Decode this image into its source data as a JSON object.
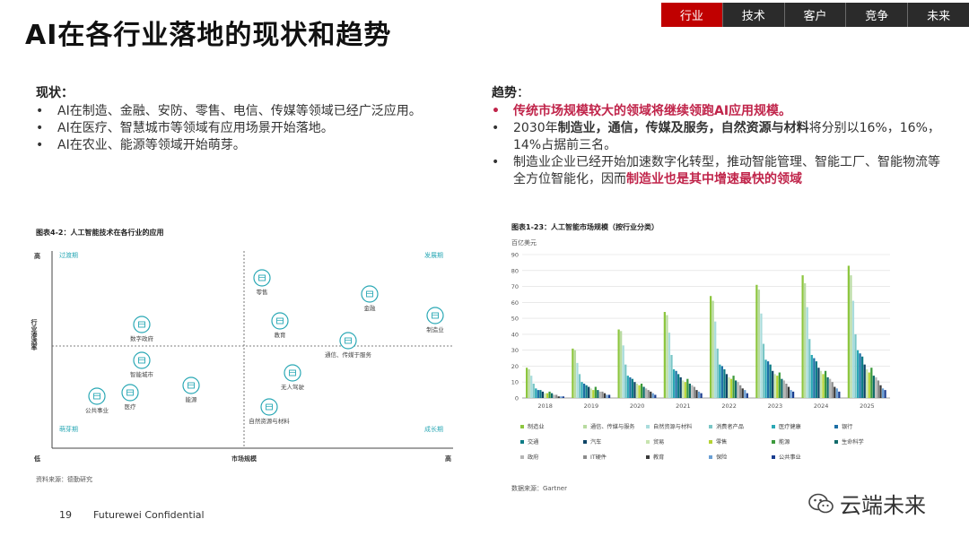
{
  "title": "AI在各行业落地的现状和趋势",
  "tabs": [
    "行业",
    "技术",
    "客户",
    "竞争",
    "未来"
  ],
  "active_tab": 0,
  "current": {
    "heading": "现状：",
    "bullets": [
      "AI在制造、金融、安防、零售、电信、传媒等领域已经广泛应用。",
      "AI在医疗、智慧城市等领域有应用场景开始落地。",
      "AI在农业、能源等领域开始萌芽。"
    ]
  },
  "trend": {
    "heading_bold": "趋势",
    "heading_rest": "：",
    "b1": "传统市场规模较大的领域将继续领跑AI应用规模。",
    "b2_a": "2030年",
    "b2_b": "制造业，通信，传媒及服务，自然资源与材料",
    "b2_c": "将分别以16%，16%，14%占据前三名。",
    "b3_a": "制造业企业已经开始加速数字化转型，推动智能管理、智能工厂、智能物流等全方位智能化，因而",
    "b3_b": "制造业也是其中增速最快的领域"
  },
  "quad": {
    "title": "图表4-2：人工智能技术在各行业的应用",
    "y_high": "高",
    "y_low": "低",
    "y_label": "行业渗透率",
    "x_mid": "市场规模",
    "x_high": "高",
    "q_tl": "过渡期",
    "q_tr": "发展期",
    "q_bl": "萌芽期",
    "q_br": "成长期",
    "source": "资料来源：德勤研究",
    "items": [
      {
        "label": "零售",
        "icon": "shop-icon"
      },
      {
        "label": "金融",
        "icon": "money-bag-icon"
      },
      {
        "label": "制造业",
        "icon": "gear-icon"
      },
      {
        "label": "教育",
        "icon": "book-icon"
      },
      {
        "label": "通信、传媒于服务",
        "icon": "wifi-icon"
      },
      {
        "label": "数字政府",
        "icon": "government-icon"
      },
      {
        "label": "智能城市",
        "icon": "city-icon"
      },
      {
        "label": "公共事业",
        "icon": "utility-icon"
      },
      {
        "label": "医疗",
        "icon": "medical-cross-icon"
      },
      {
        "label": "能源",
        "icon": "energy-icon"
      },
      {
        "label": "无人驾驶",
        "icon": "car-icon"
      },
      {
        "label": "自然资源与材料",
        "icon": "tree-icon"
      }
    ]
  },
  "chart_title": "图表1-23：人工智能市场规模（按行业分类）",
  "chart_source": "数据来源：Gartner",
  "chart_data": {
    "type": "bar",
    "ylabel": "百亿美元",
    "ylim": [
      0,
      90
    ],
    "yticks": [
      0,
      10,
      20,
      30,
      40,
      50,
      60,
      70,
      80,
      90
    ],
    "categories": [
      "2018",
      "2019",
      "2020",
      "2021",
      "2022",
      "2023",
      "2024",
      "2025"
    ],
    "grid": true,
    "legend": "bottom",
    "series": [
      {
        "name": "制造业",
        "color": "#8dc63f",
        "values": [
          19,
          31,
          43,
          54,
          64,
          71,
          77,
          83
        ]
      },
      {
        "name": "通信、传媒与服务",
        "color": "#b8dba0",
        "values": [
          18,
          30,
          42,
          52,
          61,
          68,
          72,
          77
        ]
      },
      {
        "name": "自然资源与材料",
        "color": "#a9dcdc",
        "values": [
          14,
          22,
          33,
          41,
          48,
          53,
          57,
          61
        ]
      },
      {
        "name": "消费者产品",
        "color": "#7ac6c6",
        "values": [
          9,
          15,
          21,
          27,
          31,
          34,
          37,
          40
        ]
      },
      {
        "name": "医疗健康",
        "color": "#2aa8b5",
        "values": [
          6,
          10,
          14,
          18,
          21,
          24,
          27,
          30
        ]
      },
      {
        "name": "银行",
        "color": "#1d6fa5",
        "values": [
          5,
          9,
          13,
          17,
          20,
          23,
          25,
          28
        ]
      },
      {
        "name": "交通",
        "color": "#0d7c86",
        "values": [
          5,
          8,
          12,
          15,
          18,
          21,
          23,
          26
        ]
      },
      {
        "name": "汽车",
        "color": "#0e4466",
        "values": [
          4,
          7,
          10,
          13,
          15,
          17,
          19,
          21
        ]
      },
      {
        "name": "贸易",
        "color": "#c8e4b0",
        "values": [
          3,
          6,
          9,
          11,
          13,
          15,
          17,
          18
        ]
      },
      {
        "name": "零售",
        "color": "#b5d334",
        "values": [
          3,
          5,
          8,
          10,
          12,
          14,
          15,
          16
        ]
      },
      {
        "name": "能源",
        "color": "#3c9a3c",
        "values": [
          4,
          7,
          9,
          12,
          14,
          16,
          17,
          19
        ]
      },
      {
        "name": "生命科学",
        "color": "#126b6b",
        "values": [
          3,
          5,
          7,
          9,
          11,
          12,
          13,
          14
        ]
      },
      {
        "name": "政府",
        "color": "#b5b5b5",
        "values": [
          2,
          4,
          6,
          8,
          10,
          11,
          12,
          13
        ]
      },
      {
        "name": "IT硬件",
        "color": "#8c8c8c",
        "values": [
          2,
          4,
          5,
          7,
          8,
          9,
          10,
          11
        ]
      },
      {
        "name": "教育",
        "color": "#3a3a3a",
        "values": [
          1,
          3,
          4,
          5,
          6,
          7,
          7,
          8
        ]
      },
      {
        "name": "保险",
        "color": "#6a9fd4",
        "values": [
          1,
          2,
          3,
          4,
          5,
          5,
          6,
          6
        ]
      },
      {
        "name": "公共事业",
        "color": "#1a3d8f",
        "values": [
          1,
          2,
          2,
          3,
          3,
          4,
          4,
          5
        ]
      }
    ]
  },
  "footer": {
    "page": "19",
    "text": "Futurewei  Confidential"
  },
  "watermark": {
    "text": "云端未来",
    "icon": "wechat-icon"
  }
}
